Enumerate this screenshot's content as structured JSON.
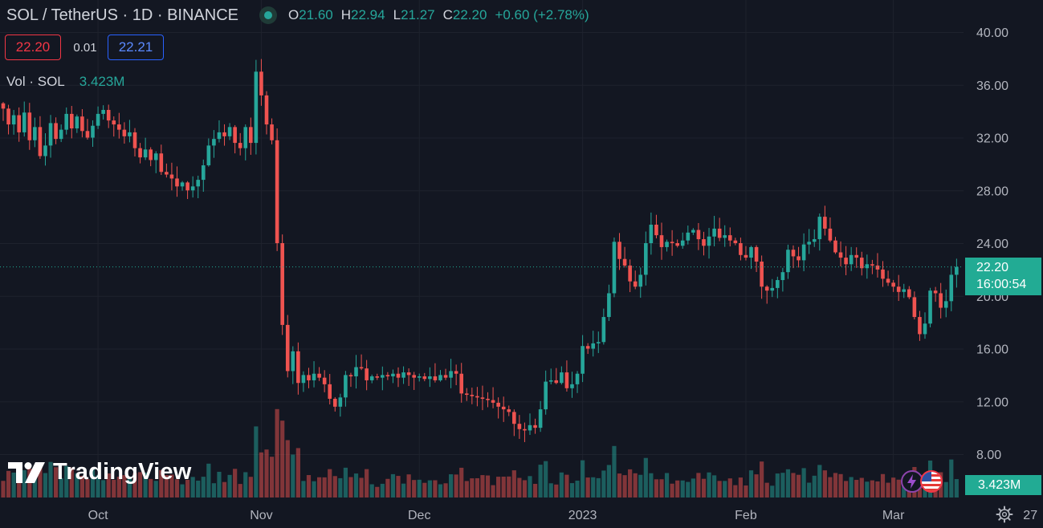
{
  "header": {
    "title": "SOL / TetherUS · 1D · BINANCE",
    "ohlc": {
      "o_label": "O",
      "o": "21.60",
      "h_label": "H",
      "h": "22.94",
      "l_label": "L",
      "l": "21.27",
      "c_label": "C",
      "c": "22.20",
      "change": "+0.60 (+2.78%)"
    }
  },
  "trade": {
    "sell": "22.20",
    "spread": "0.01",
    "buy": "22.21"
  },
  "volume_legend": {
    "label": "Vol · SOL",
    "value": "3.423M"
  },
  "current": {
    "price": "22.20",
    "countdown": "16:00:54",
    "volume": "3.423M"
  },
  "brand": "TradingView",
  "colors": {
    "up": "#26a69a",
    "down": "#ef5350",
    "background": "#131722",
    "grid": "#1e222d",
    "last_price": "#22ab94"
  },
  "icons": [
    "tradingview-logo-icon",
    "bolt-icon",
    "us-flag-icon",
    "settings-gear-icon",
    "market-status-dot-icon"
  ],
  "chart_data": {
    "type": "candlestick",
    "ylim": [
      5.5,
      41.5
    ],
    "y_ticks": [
      "40.00",
      "36.00",
      "32.00",
      "28.00",
      "24.00",
      "20.00",
      "16.00",
      "12.00",
      "8.00"
    ],
    "y_tick_values": [
      40,
      36,
      32,
      28,
      24,
      20,
      16,
      12,
      8
    ],
    "x_ticks": [
      "Oct",
      "Nov",
      "Dec",
      "2023",
      "Feb",
      "Mar",
      "27"
    ],
    "x_tick_dates": [
      "2022-10-01",
      "2022-11-01",
      "2022-12-01",
      "2023-01-01",
      "2023-02-01",
      "2023-03-01",
      "2023-03-27"
    ],
    "first_date": "2022-09-13",
    "series_closes": [
      34.2,
      33.0,
      33.7,
      32.4,
      33.9,
      31.8,
      32.8,
      30.6,
      31.4,
      33.1,
      31.9,
      32.6,
      33.8,
      32.7,
      33.6,
      32.5,
      32.0,
      32.9,
      33.8,
      34.1,
      33.3,
      33.0,
      32.6,
      32.1,
      32.4,
      31.2,
      30.5,
      31.1,
      30.3,
      30.8,
      29.4,
      29.2,
      28.9,
      28.3,
      28.6,
      28.0,
      28.3,
      28.8,
      29.9,
      31.4,
      31.9,
      32.4,
      32.1,
      32.8,
      31.6,
      31.2,
      32.8,
      31.6,
      37.0,
      35.2,
      33.0,
      31.8,
      24.0,
      17.8,
      14.3,
      15.8,
      13.4,
      14.0,
      13.6,
      14.1,
      13.8,
      13.3,
      12.2,
      11.6,
      12.3,
      14.0,
      13.9,
      14.6,
      14.5,
      13.6,
      13.9,
      13.8,
      14.0,
      13.9,
      14.1,
      13.8,
      14.2,
      14.0,
      13.8,
      13.9,
      13.7,
      13.9,
      13.6,
      14.0,
      13.8,
      14.3,
      14.1,
      12.6,
      12.5,
      12.4,
      12.3,
      12.2,
      12.1,
      11.9,
      11.6,
      11.4,
      11.2,
      10.3,
      9.9,
      9.8,
      10.2,
      10.0,
      11.4,
      13.5,
      13.6,
      13.4,
      14.2,
      13.0,
      13.3,
      14.1,
      16.2,
      16.0,
      16.4,
      16.5,
      18.4,
      20.2,
      24.1,
      22.8,
      22.3,
      21.1,
      20.7,
      21.6,
      24.0,
      25.4,
      24.6,
      23.7,
      24.1,
      24.0,
      23.8,
      24.2,
      24.8,
      25.0,
      24.3,
      23.8,
      24.5,
      25.1,
      24.4,
      24.6,
      24.2,
      24.0,
      23.1,
      22.9,
      23.7,
      22.6,
      20.7,
      20.4,
      20.6,
      21.2,
      21.8,
      23.5,
      23.0,
      22.7,
      23.9,
      24.1,
      24.3,
      26.0,
      25.1,
      24.2,
      23.3,
      22.9,
      22.4,
      23.1,
      22.9,
      22.1,
      22.4,
      22.3,
      22.0,
      21.3,
      21.0,
      20.7,
      20.3,
      20.5,
      19.9,
      18.4,
      17.1,
      17.9,
      20.4,
      20.2,
      19.1,
      19.6,
      21.6,
      22.2
    ],
    "volume_scale_max_m": 20
  }
}
